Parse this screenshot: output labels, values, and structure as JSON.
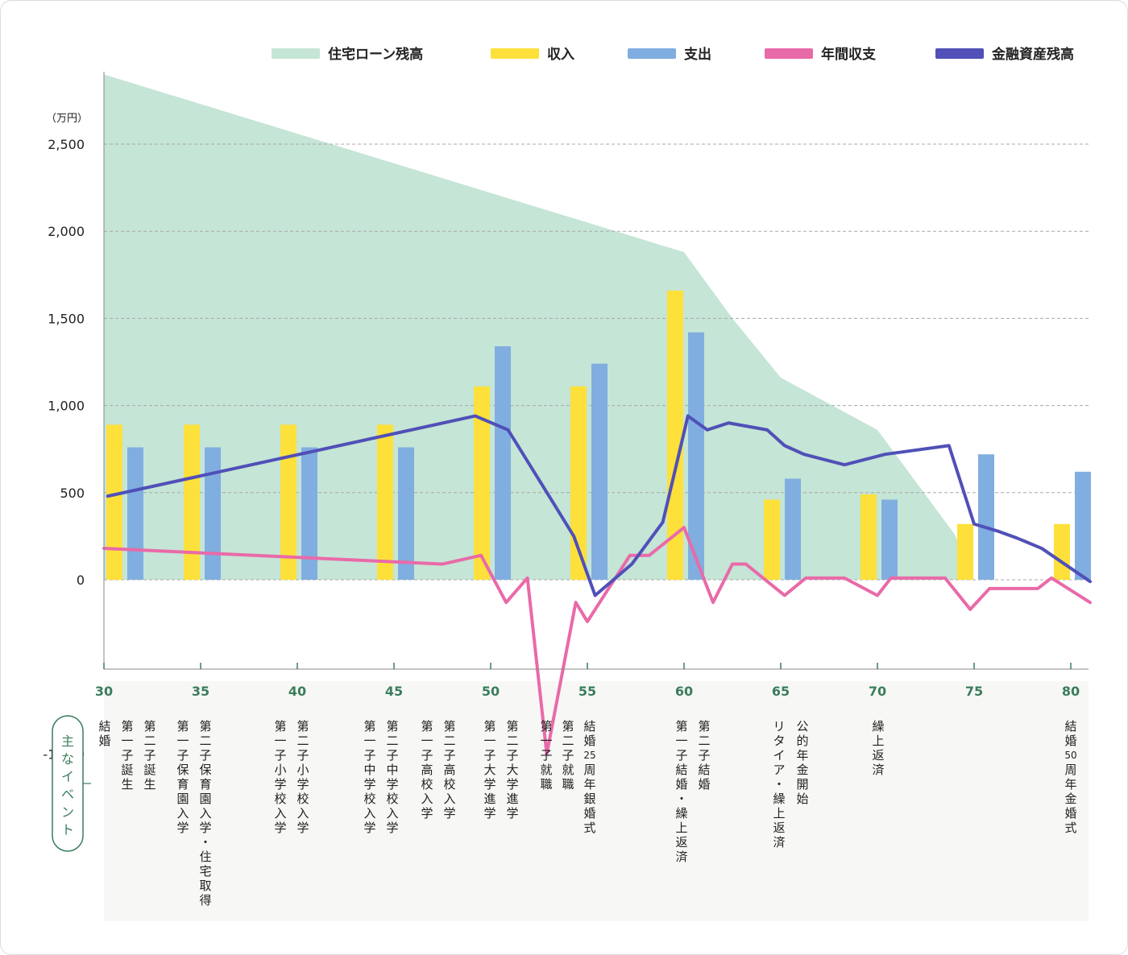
{
  "chart_data": {
    "type": "bar",
    "unit_label": "（万円）",
    "ylim": [
      -1000,
      2900
    ],
    "yticks": [
      {
        "v": 2500,
        "label": "2,500"
      },
      {
        "v": 2000,
        "label": "2,000"
      },
      {
        "v": 1500,
        "label": "1,500"
      },
      {
        "v": 1000,
        "label": "1,000"
      },
      {
        "v": 500,
        "label": "500"
      },
      {
        "v": 0,
        "label": "0"
      },
      {
        "v": -1000,
        "label": "-1,000"
      }
    ],
    "xlim": [
      30,
      81
    ],
    "xticks": [
      30,
      35,
      40,
      45,
      50,
      55,
      60,
      65,
      70,
      75,
      80
    ],
    "grid": "horizontal dashed",
    "legend_position": "top-right",
    "legend": [
      {
        "key": "loan",
        "label": "住宅ローン残高",
        "color": "#c5e5d6"
      },
      {
        "key": "income",
        "label": "収入",
        "color": "#fde03a"
      },
      {
        "key": "expense",
        "label": "支出",
        "color": "#80aee0"
      },
      {
        "key": "balance",
        "label": "年間収支",
        "color": "#e96aa8"
      },
      {
        "key": "assets",
        "label": "金融資産残高",
        "color": "#5050b8"
      }
    ],
    "loan_balance": {
      "x": [
        30,
        60,
        62.5,
        65,
        70,
        74,
        75
      ],
      "y": [
        2900,
        1880,
        1500,
        1160,
        860,
        260,
        0
      ]
    },
    "bars": [
      {
        "age": 30,
        "income": 890,
        "expense": 760
      },
      {
        "age": 34,
        "income": 890,
        "expense": 760
      },
      {
        "age": 39,
        "income": 890,
        "expense": 760
      },
      {
        "age": 44,
        "income": 890,
        "expense": 760
      },
      {
        "age": 49,
        "income": 1110,
        "expense": 1340
      },
      {
        "age": 54,
        "income": 1110,
        "expense": 1240
      },
      {
        "age": 59,
        "income": 1660,
        "expense": 1420
      },
      {
        "age": 64,
        "income": 460,
        "expense": 580
      },
      {
        "age": 69,
        "income": 490,
        "expense": 460
      },
      {
        "age": 74,
        "income": 320,
        "expense": 720
      },
      {
        "age": 79,
        "income": 320,
        "expense": 620
      }
    ],
    "annual_balance": {
      "x": [
        30,
        47.5,
        49.5,
        50.8,
        51.9,
        52.9,
        54.4,
        55,
        57.2,
        58.2,
        60,
        61.5,
        62.5,
        63.2,
        65.2,
        66.3,
        68.3,
        70,
        70.7,
        73.5,
        74.8,
        75.8,
        77.1,
        78.3,
        79,
        81
      ],
      "y": [
        180,
        90,
        140,
        -130,
        10,
        -1000,
        -130,
        -240,
        140,
        140,
        300,
        -130,
        90,
        90,
        -90,
        10,
        10,
        -90,
        10,
        10,
        -170,
        -50,
        -50,
        -50,
        10,
        -130
      ]
    },
    "asset_balance": {
      "x": [
        30.2,
        49.2,
        50.9,
        53.3,
        54.3,
        55.4,
        57.3,
        58.9,
        60.2,
        61.2,
        62.3,
        64.3,
        65.2,
        66.2,
        68.3,
        70.4,
        73.7,
        75,
        76.2,
        77.2,
        78.5,
        81
      ],
      "y": [
        480,
        940,
        860,
        430,
        250,
        -90,
        90,
        330,
        940,
        860,
        900,
        860,
        770,
        720,
        660,
        720,
        770,
        320,
        280,
        240,
        180,
        -10
      ]
    }
  },
  "events": [
    {
      "x": 129,
      "lines": [
        "結婚"
      ]
    },
    {
      "x": 157,
      "lines": [
        "第一子誕生"
      ]
    },
    {
      "x": 185,
      "lines": [
        "第二子誕生"
      ]
    },
    {
      "x": 226,
      "lines": [
        "第一子保育園入学"
      ]
    },
    {
      "x": 254,
      "lines": [
        "第二子保育園入学・住宅取得"
      ]
    },
    {
      "x": 347,
      "lines": [
        "第一子小学校入学"
      ]
    },
    {
      "x": 375,
      "lines": [
        "第二子小学校入学"
      ]
    },
    {
      "x": 458,
      "lines": [
        "第一子中学校入学"
      ]
    },
    {
      "x": 486,
      "lines": [
        "第二子中学校入学"
      ]
    },
    {
      "x": 529,
      "lines": [
        "第一子高校入学"
      ]
    },
    {
      "x": 557,
      "lines": [
        "第二子高校入学"
      ]
    },
    {
      "x": 607,
      "lines": [
        "第一子大学進学"
      ]
    },
    {
      "x": 635,
      "lines": [
        "第二子大学進学"
      ]
    },
    {
      "x": 677,
      "lines": [
        "第一子就職"
      ]
    },
    {
      "x": 704,
      "lines": [
        "第二子就職"
      ]
    },
    {
      "x": 731,
      "lines": [
        "結婚25周年銀婚式"
      ]
    },
    {
      "x": 845,
      "lines": [
        "第一子結婚・繰上返済"
      ]
    },
    {
      "x": 873,
      "lines": [
        "第二子結婚"
      ]
    },
    {
      "x": 966,
      "lines": [
        "リタイア・繰上返済"
      ]
    },
    {
      "x": 995,
      "lines": [
        "公的年金開始"
      ]
    },
    {
      "x": 1089,
      "lines": [
        "繰上返済"
      ]
    },
    {
      "x": 1328,
      "lines": [
        "結婚50周年金婚式"
      ]
    }
  ],
  "events_label": "主なイベント"
}
